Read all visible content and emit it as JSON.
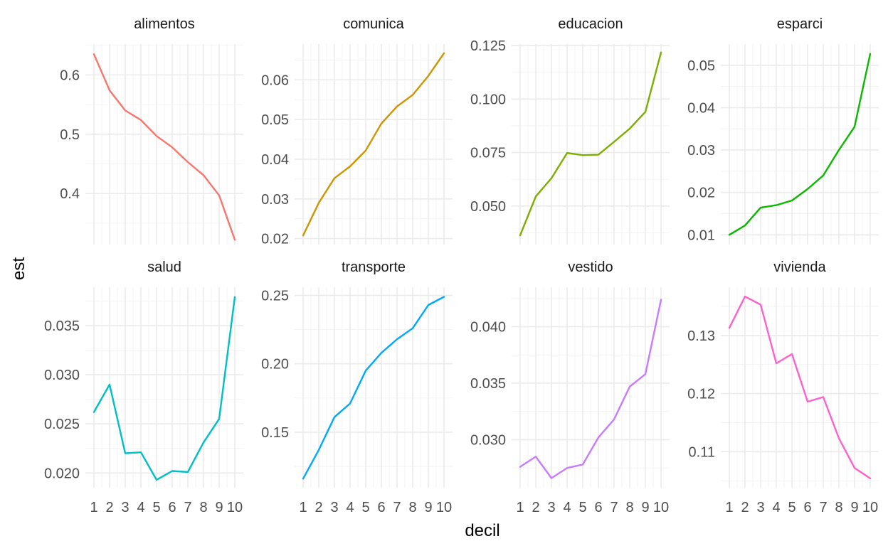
{
  "chart_data": {
    "type": "line",
    "facet_layout": "2x4 grid, independent y scales",
    "xlabel": "decil",
    "ylabel": "est",
    "grid": true,
    "legend": "none",
    "x": [
      1,
      2,
      3,
      4,
      5,
      6,
      7,
      8,
      9,
      10
    ],
    "x_tick_labels": [
      "1",
      "2",
      "3",
      "4",
      "5",
      "6",
      "7",
      "8",
      "9",
      "10"
    ],
    "panels": [
      {
        "name": "alimentos",
        "color": "#F8766D",
        "ylim": [
          0.314,
          0.652
        ],
        "yticks": [
          0.4,
          0.5,
          0.6
        ],
        "ytick_labels": [
          "0.4",
          "0.5",
          "0.6"
        ],
        "values": [
          0.635,
          0.574,
          0.54,
          0.524,
          0.497,
          0.478,
          0.453,
          0.431,
          0.397,
          0.322
        ]
      },
      {
        "name": "comunica",
        "color": "#CD9600",
        "ylim": [
          0.0185,
          0.069
        ],
        "yticks": [
          0.02,
          0.03,
          0.04,
          0.05,
          0.06
        ],
        "ytick_labels": [
          "0.02",
          "0.03",
          "0.04",
          "0.05",
          "0.06"
        ],
        "values": [
          0.0208,
          0.029,
          0.0352,
          0.0382,
          0.0422,
          0.049,
          0.0533,
          0.0562,
          0.061,
          0.0667
        ]
      },
      {
        "name": "educacion",
        "color": "#7CAE00",
        "ylim": [
          0.032,
          0.1257
        ],
        "yticks": [
          0.05,
          0.075,
          0.1,
          0.125
        ],
        "ytick_labels": [
          "0.050",
          "0.075",
          "0.100",
          "0.125"
        ],
        "values": [
          0.0363,
          0.0545,
          0.063,
          0.0748,
          0.0738,
          0.074,
          0.08,
          0.0862,
          0.094,
          0.1218
        ]
      },
      {
        "name": "esparci",
        "color": "#0CB702",
        "ylim": [
          0.0077,
          0.055
        ],
        "yticks": [
          0.01,
          0.02,
          0.03,
          0.04,
          0.05
        ],
        "ytick_labels": [
          "0.01",
          "0.02",
          "0.03",
          "0.04",
          "0.05"
        ],
        "values": [
          0.01,
          0.0122,
          0.0164,
          0.017,
          0.0181,
          0.0208,
          0.024,
          0.03,
          0.0355,
          0.0527
        ]
      },
      {
        "name": "salud",
        "color": "#00BFC4",
        "ylim": [
          0.0185,
          0.0389
        ],
        "yticks": [
          0.02,
          0.025,
          0.03,
          0.035
        ],
        "ytick_labels": [
          "0.020",
          "0.025",
          "0.030",
          "0.035"
        ],
        "values": [
          0.0262,
          0.029,
          0.022,
          0.0221,
          0.0193,
          0.0202,
          0.0201,
          0.0231,
          0.0255,
          0.0379
        ]
      },
      {
        "name": "transporte",
        "color": "#00A9FF",
        "ylim": [
          0.1094,
          0.256
        ],
        "yticks": [
          0.15,
          0.2,
          0.25
        ],
        "ytick_labels": [
          "0.15",
          "0.20",
          "0.25"
        ],
        "values": [
          0.116,
          0.137,
          0.161,
          0.171,
          0.195,
          0.208,
          0.218,
          0.226,
          0.243,
          0.249
        ]
      },
      {
        "name": "vestido",
        "color": "#C77CFF",
        "ylim": [
          0.02575,
          0.0435
        ],
        "yticks": [
          0.03,
          0.035,
          0.04
        ],
        "ytick_labels": [
          "0.030",
          "0.035",
          "0.040"
        ],
        "values": [
          0.0276,
          0.0285,
          0.0266,
          0.0275,
          0.0278,
          0.0302,
          0.0318,
          0.0347,
          0.0358,
          0.0424
        ]
      },
      {
        "name": "vivienda",
        "color": "#FF61CC",
        "ylim": [
          0.1038,
          0.1383
        ],
        "yticks": [
          0.11,
          0.12,
          0.13
        ],
        "ytick_labels": [
          "0.11",
          "0.12",
          "0.13"
        ],
        "values": [
          0.1313,
          0.1367,
          0.1353,
          0.1252,
          0.1268,
          0.1186,
          0.1194,
          0.1123,
          0.1072,
          0.1054
        ]
      }
    ]
  }
}
